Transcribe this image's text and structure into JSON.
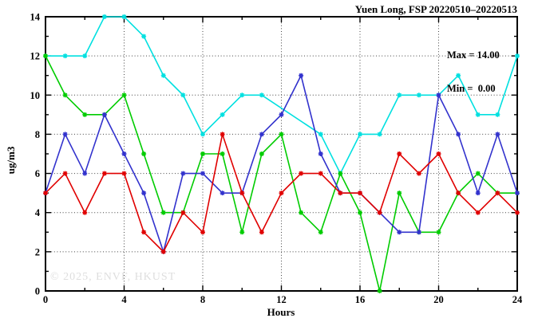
{
  "title": "Yuen Long, FSP 20220510–20220513",
  "legend": {
    "max_label": "Max = 14.00",
    "min_label": "Min =  0.00"
  },
  "watermark": "© 2025, ENVF, HKUST",
  "chart_data": {
    "type": "line",
    "title": "Yuen Long, FSP 20220510–20220513",
    "xlabel": "Hours",
    "ylabel": "ug/m3",
    "xlim": [
      0,
      24
    ],
    "ylim": [
      0,
      14
    ],
    "x_major_ticks": [
      0,
      4,
      8,
      12,
      16,
      20,
      24
    ],
    "x_minor_step": 2,
    "y_major_ticks": [
      0,
      2,
      4,
      6,
      8,
      10,
      12,
      14
    ],
    "y_minor_step": 1,
    "grid": true,
    "legend_position": "top-right-inside",
    "stats": {
      "max": 14.0,
      "min": 0.0
    },
    "series": [
      {
        "name": "cyan-series",
        "color": "#00e0e0",
        "points": [
          [
            0,
            12
          ],
          [
            1,
            12
          ],
          [
            2,
            12
          ],
          [
            3,
            14
          ],
          [
            4,
            14
          ],
          [
            5,
            13
          ],
          [
            6,
            11
          ],
          [
            7,
            10
          ],
          [
            8,
            8
          ],
          [
            9,
            9
          ],
          [
            10,
            10
          ],
          [
            11,
            10
          ],
          [
            14,
            8
          ],
          [
            15,
            6
          ],
          [
            16,
            8
          ],
          [
            17,
            8
          ],
          [
            18,
            10
          ],
          [
            19,
            10
          ],
          [
            20,
            10
          ],
          [
            21,
            11
          ],
          [
            22,
            9
          ],
          [
            23,
            9
          ],
          [
            24,
            12
          ]
        ]
      },
      {
        "name": "green-series",
        "color": "#00cc00",
        "points": [
          [
            0,
            12
          ],
          [
            1,
            10
          ],
          [
            2,
            9
          ],
          [
            3,
            9
          ],
          [
            4,
            10
          ],
          [
            5,
            7
          ],
          [
            6,
            4
          ],
          [
            7,
            4
          ],
          [
            8,
            7
          ],
          [
            9,
            7
          ],
          [
            10,
            3
          ],
          [
            11,
            7
          ],
          [
            12,
            8
          ],
          [
            13,
            4
          ],
          [
            14,
            3
          ],
          [
            15,
            6
          ],
          [
            16,
            4
          ],
          [
            17,
            0
          ],
          [
            18,
            5
          ],
          [
            19,
            3
          ],
          [
            20,
            3
          ],
          [
            21,
            5
          ],
          [
            22,
            6
          ],
          [
            23,
            5
          ],
          [
            24,
            5
          ]
        ]
      },
      {
        "name": "blue-series",
        "color": "#3232cd",
        "points": [
          [
            0,
            5
          ],
          [
            1,
            8
          ],
          [
            2,
            6
          ],
          [
            3,
            9
          ],
          [
            4,
            7
          ],
          [
            5,
            5
          ],
          [
            6,
            2
          ],
          [
            7,
            6
          ],
          [
            8,
            6
          ],
          [
            9,
            5
          ],
          [
            10,
            5
          ],
          [
            11,
            8
          ],
          [
            12,
            9
          ],
          [
            13,
            11
          ],
          [
            14,
            7
          ],
          [
            15,
            5
          ],
          [
            16,
            5
          ],
          [
            17,
            4
          ],
          [
            18,
            3
          ],
          [
            19,
            3
          ],
          [
            20,
            10
          ],
          [
            21,
            8
          ],
          [
            22,
            5
          ],
          [
            23,
            8
          ],
          [
            24,
            5
          ]
        ]
      },
      {
        "name": "red-series",
        "color": "#e00000",
        "points": [
          [
            0,
            5
          ],
          [
            1,
            6
          ],
          [
            2,
            4
          ],
          [
            3,
            6
          ],
          [
            4,
            6
          ],
          [
            5,
            3
          ],
          [
            6,
            2
          ],
          [
            7,
            4
          ],
          [
            8,
            3
          ],
          [
            9,
            8
          ],
          [
            10,
            5
          ],
          [
            11,
            3
          ],
          [
            12,
            5
          ],
          [
            13,
            6
          ],
          [
            14,
            6
          ],
          [
            15,
            5
          ],
          [
            16,
            5
          ],
          [
            17,
            4
          ],
          [
            18,
            7
          ],
          [
            19,
            6
          ],
          [
            20,
            7
          ],
          [
            21,
            5
          ],
          [
            22,
            4
          ],
          [
            23,
            5
          ],
          [
            24,
            4
          ]
        ]
      }
    ]
  }
}
